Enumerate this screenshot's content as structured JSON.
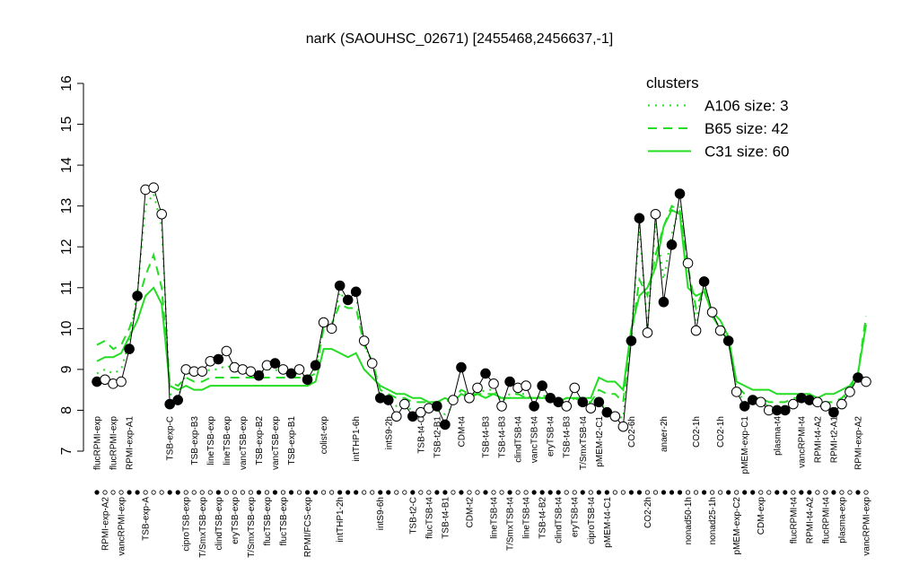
{
  "chart_data": {
    "type": "line",
    "title": "narK (SAOUHSC_02671) [2455468,2456637,-1]",
    "legend_title": "clusters",
    "legend_color": "#22dd22",
    "ylim": [
      7,
      16
    ],
    "yticks": [
      7,
      8,
      9,
      10,
      11,
      12,
      13,
      14,
      15,
      16
    ],
    "categories": [
      "flucRPMI-exp",
      "RPMI-exp-A2",
      "flucRPMI-exp",
      "vancRPMI-exp",
      "RPMI-exp-A1",
      null,
      "TSB-exp-A",
      null,
      null,
      "TSB-exp-C",
      null,
      "ciproTSB-exp",
      "TSB-exp-B3",
      "T/SmxTSB-exp",
      "lineTSB-exp",
      "clindTSB-exp",
      "lineTSB-exp",
      "eryTSB-exp",
      "vancTSB-exp",
      "T/SmxTSB-exp",
      "TSB-exp-B2",
      "flucTSB-exp",
      "vancTSB-exp",
      "flucTSB-exp",
      "TSB-exp-B1",
      null,
      "RPMI/FCS-exp",
      null,
      "colist-exp",
      null,
      "intTHP1-2h",
      null,
      "intTHP1-6h",
      null,
      null,
      "intS9-6h",
      "intS9-2h",
      null,
      null,
      "TSB-t2-C",
      "TSB-t4-C",
      "flucTSB-t4",
      "TSB-t2-B1",
      "TSB-t4-B1",
      null,
      "CDM-t4",
      "CDM-t2",
      null,
      "TSB-t4-B3",
      "lineTSB-t4",
      "TSB-t4-B3",
      "T/SmxTSB-t4",
      "clindTSB-t4",
      "lineTSB-t4",
      "vancTSB-t4",
      "TSB-t4-B2",
      "eryTSB-t4",
      "clindTSB-t4",
      "TSB-t4-B3",
      "eryTSB-t4",
      "T/SmxTSB-t4",
      "ciproTSB-t4",
      "pMEM-t2-C1",
      "pMEM-t4-C1",
      null,
      null,
      "CO2-6h",
      null,
      "CO2-2h",
      null,
      "anaer-2h",
      null,
      null,
      "nonad50-1h",
      "CO2-1h",
      null,
      "nonad25-1h",
      "CO2-1h",
      null,
      "pMEM-exp-C2",
      "pMEM-exp-C1",
      null,
      "CDM-exp",
      null,
      "plasma-t4",
      null,
      "flucRPMI-t4",
      "vancRPMI-t4",
      "RPMI-t4-A2",
      "RPMI-t4-A2",
      "flucRPMI-t4",
      "RPMI-t2-A1",
      "plasma-exp",
      null,
      "RPMI-exp-A2",
      "vancRPMI-exp"
    ],
    "series": [
      {
        "color": "#000000",
        "values": [
          8.7,
          8.75,
          8.65,
          8.7,
          9.5,
          10.8,
          13.4,
          13.45,
          12.8,
          8.15,
          8.25,
          9.0,
          8.95,
          8.95,
          9.2,
          9.25,
          9.45,
          9.05,
          9.0,
          8.95,
          8.85,
          9.1,
          9.15,
          9.0,
          8.9,
          9.0,
          8.75,
          9.1,
          10.15,
          10.0,
          11.05,
          10.7,
          10.9,
          9.7,
          9.15,
          8.3,
          8.25,
          7.85,
          8.15,
          7.85,
          7.95,
          8.05,
          8.1,
          7.65,
          8.25,
          9.05,
          8.3,
          8.55,
          8.9,
          8.65,
          8.1,
          8.7,
          8.55,
          8.6,
          8.1,
          8.6,
          8.3,
          8.2,
          8.1,
          8.55,
          8.2,
          8.05,
          8.2,
          7.95,
          7.85,
          7.6,
          9.7,
          12.7,
          9.9,
          12.8,
          10.65,
          12.05,
          13.3,
          11.6,
          9.95,
          11.15,
          10.4,
          9.95,
          9.7,
          8.45,
          8.1,
          8.25,
          8.2,
          8.0,
          8.0,
          8.0,
          8.15,
          8.3,
          8.25,
          8.2,
          8.1,
          7.95,
          8.15,
          8.45,
          8.8,
          8.7
        ],
        "filled": [
          true,
          false,
          false,
          false,
          true,
          true,
          false,
          false,
          false,
          true,
          true,
          false,
          false,
          false,
          false,
          true,
          false,
          false,
          false,
          false,
          true,
          false,
          true,
          false,
          true,
          false,
          true,
          true,
          false,
          false,
          true,
          true,
          true,
          false,
          false,
          true,
          true,
          false,
          false,
          true,
          false,
          false,
          true,
          true,
          false,
          true,
          false,
          false,
          true,
          false,
          false,
          true,
          false,
          false,
          true,
          true,
          true,
          true,
          false,
          false,
          true,
          false,
          true,
          true,
          false,
          false,
          true,
          true,
          false,
          false,
          true,
          true,
          true,
          false,
          false,
          true,
          false,
          false,
          true,
          false,
          true,
          true,
          false,
          false,
          true,
          true,
          false,
          true,
          true,
          false,
          false,
          true,
          false,
          false,
          true,
          false
        ]
      },
      {
        "name": "A106 size: 3",
        "color": "#22dd22",
        "dash": "dotted",
        "values": [
          8.9,
          9.0,
          8.9,
          9.0,
          9.7,
          10.9,
          13.0,
          13.3,
          12.5,
          8.4,
          8.3,
          8.9,
          8.9,
          8.9,
          9.0,
          9.0,
          9.1,
          9.0,
          8.9,
          8.9,
          8.9,
          9.0,
          9.0,
          8.9,
          8.9,
          8.9,
          8.8,
          9.0,
          10.1,
          10.1,
          10.9,
          10.6,
          10.8,
          9.6,
          9.2,
          8.4,
          8.3,
          8.1,
          8.1,
          8.0,
          8.0,
          8.0,
          8.0,
          7.9,
          8.1,
          8.5,
          8.3,
          8.4,
          8.5,
          8.5,
          8.2,
          8.4,
          8.4,
          8.4,
          8.2,
          8.4,
          8.2,
          8.2,
          8.1,
          8.3,
          8.1,
          8.1,
          8.2,
          8.0,
          7.9,
          7.8,
          9.8,
          12.5,
          10.0,
          12.6,
          11.2,
          12.3,
          13.0,
          11.5,
          10.2,
          11.0,
          10.3,
          10.0,
          9.7,
          8.5,
          8.2,
          8.2,
          8.2,
          8.1,
          8.0,
          8.0,
          8.2,
          8.3,
          8.2,
          8.2,
          8.1,
          8.0,
          8.2,
          8.5,
          8.8,
          8.8
        ]
      },
      {
        "name": "B65 size: 42",
        "color": "#22dd22",
        "dash": "dashed",
        "values": [
          9.6,
          9.7,
          9.5,
          9.6,
          10.0,
          10.6,
          11.3,
          11.8,
          11.0,
          8.7,
          8.6,
          8.8,
          8.7,
          8.7,
          8.8,
          8.8,
          8.8,
          8.8,
          8.8,
          8.8,
          8.8,
          8.8,
          8.8,
          8.8,
          8.8,
          8.8,
          8.8,
          8.9,
          10.0,
          10.1,
          10.6,
          10.5,
          10.5,
          9.6,
          9.2,
          8.5,
          8.4,
          8.3,
          8.3,
          8.2,
          8.2,
          8.2,
          8.2,
          8.2,
          8.3,
          8.5,
          8.4,
          8.4,
          8.4,
          8.4,
          8.3,
          8.3,
          8.4,
          8.3,
          8.3,
          8.3,
          8.3,
          8.2,
          8.3,
          8.3,
          8.2,
          8.2,
          8.5,
          8.4,
          8.4,
          8.2,
          9.8,
          11.2,
          10.8,
          11.8,
          12.5,
          13.0,
          12.9,
          11.5,
          10.5,
          11.0,
          10.3,
          10.0,
          9.7,
          8.6,
          8.4,
          8.3,
          8.3,
          8.2,
          8.2,
          8.2,
          8.3,
          8.3,
          8.3,
          8.2,
          8.2,
          8.2,
          8.3,
          8.5,
          8.9,
          10.3
        ]
      },
      {
        "name": "C31 size: 60",
        "color": "#22dd22",
        "dash": "solid",
        "values": [
          9.2,
          9.3,
          9.3,
          9.4,
          9.8,
          10.2,
          10.8,
          11.0,
          10.6,
          8.6,
          8.5,
          8.6,
          8.5,
          8.5,
          8.6,
          8.6,
          8.6,
          8.6,
          8.6,
          8.6,
          8.6,
          8.6,
          8.6,
          8.6,
          8.6,
          8.6,
          8.6,
          8.7,
          9.5,
          9.5,
          9.4,
          9.3,
          9.4,
          9.0,
          8.8,
          8.6,
          8.5,
          8.4,
          8.4,
          8.3,
          8.3,
          8.2,
          8.2,
          8.3,
          8.2,
          8.4,
          8.3,
          8.4,
          8.3,
          8.4,
          8.3,
          8.3,
          8.3,
          8.3,
          8.3,
          8.3,
          8.3,
          8.2,
          8.3,
          8.3,
          8.3,
          8.3,
          8.8,
          8.7,
          8.7,
          8.5,
          10.0,
          10.8,
          11.0,
          11.5,
          12.5,
          12.9,
          12.8,
          11.0,
          10.8,
          10.9,
          10.4,
          10.2,
          9.8,
          8.7,
          8.6,
          8.5,
          8.5,
          8.5,
          8.4,
          8.4,
          8.4,
          8.4,
          8.4,
          8.3,
          8.4,
          8.4,
          8.5,
          8.6,
          8.9,
          10.1
        ]
      }
    ]
  }
}
